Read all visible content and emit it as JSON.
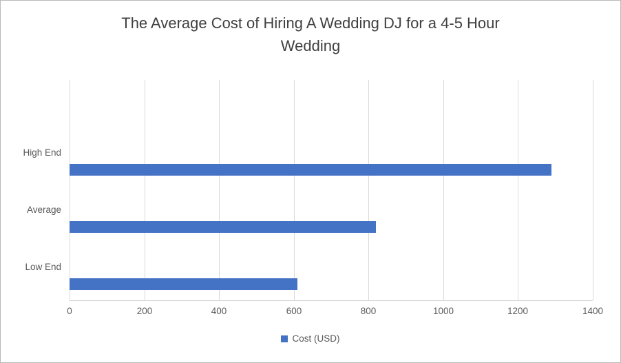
{
  "chart_data": {
    "type": "bar",
    "orientation": "horizontal",
    "title": "The Average Cost of Hiring A Wedding DJ for a 4-5 Hour Wedding",
    "categories": [
      "High End",
      "Average",
      "Low End"
    ],
    "series": [
      {
        "name": "Cost (USD)",
        "values": [
          1290,
          820,
          610
        ]
      }
    ],
    "xlabel": "",
    "ylabel": "",
    "xlim": [
      0,
      1400
    ],
    "xticks": [
      0,
      200,
      400,
      600,
      800,
      1000,
      1200,
      1400
    ],
    "grid": true,
    "legend_position": "bottom",
    "bar_color": "#4472C4",
    "gridline_color": "#d9d9d9",
    "axis_text_color": "#595959",
    "title_color": "#404040"
  }
}
